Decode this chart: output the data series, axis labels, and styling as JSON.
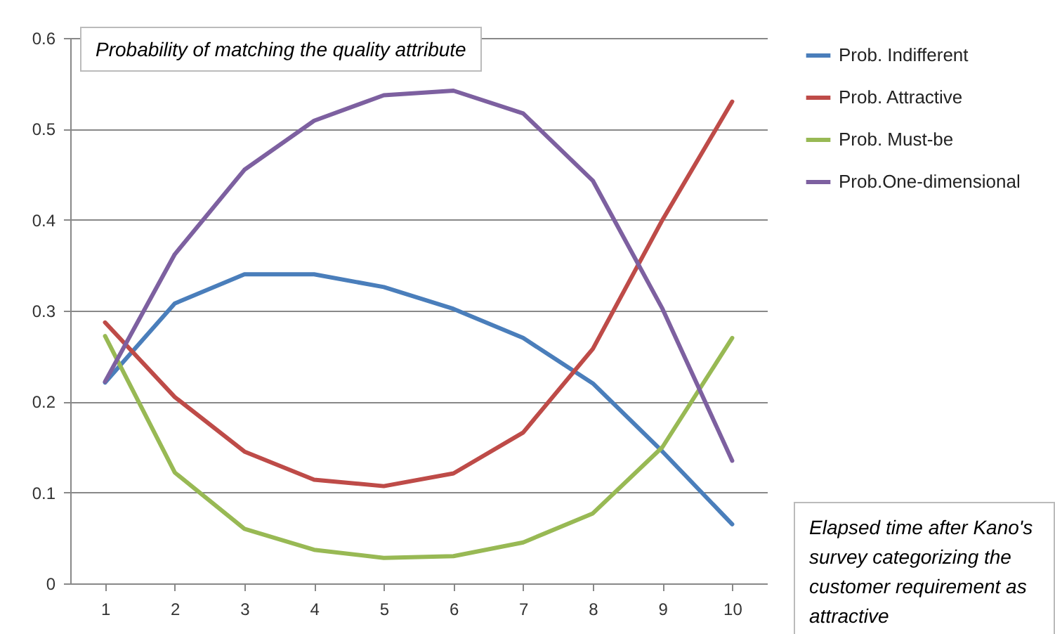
{
  "chart_data": {
    "type": "line",
    "ylabel": "Probability of matching the quality attribute",
    "xlabel": "Elapsed time after Kano's survey categorizing the customer requirement as attractive",
    "categories": [
      "1",
      "2",
      "3",
      "4",
      "5",
      "6",
      "7",
      "8",
      "9",
      "10"
    ],
    "series": [
      {
        "name": "Prob. Indifferent",
        "color": "#4a7ebb",
        "values": [
          0.221,
          0.308,
          0.34,
          0.34,
          0.326,
          0.302,
          0.27,
          0.22,
          0.145,
          0.065
        ]
      },
      {
        "name": "Prob. Attractive",
        "color": "#be4b48",
        "values": [
          0.287,
          0.205,
          0.145,
          0.114,
          0.107,
          0.121,
          0.166,
          0.258,
          0.4,
          0.53
        ]
      },
      {
        "name": "Prob. Must-be",
        "color": "#98b954",
        "values": [
          0.272,
          0.122,
          0.06,
          0.037,
          0.028,
          0.03,
          0.045,
          0.077,
          0.15,
          0.27
        ]
      },
      {
        "name": "Prob.One-dimensional",
        "color": "#7d60a0",
        "values": [
          0.222,
          0.362,
          0.455,
          0.509,
          0.537,
          0.542,
          0.517,
          0.443,
          0.302,
          0.135
        ]
      }
    ],
    "ylim": [
      0,
      0.6
    ],
    "yticks": [
      0,
      0.1,
      0.2,
      0.3,
      0.4,
      0.5,
      0.6
    ],
    "grid": "y",
    "legend": "right",
    "marker": "none",
    "line_style": "solid"
  }
}
